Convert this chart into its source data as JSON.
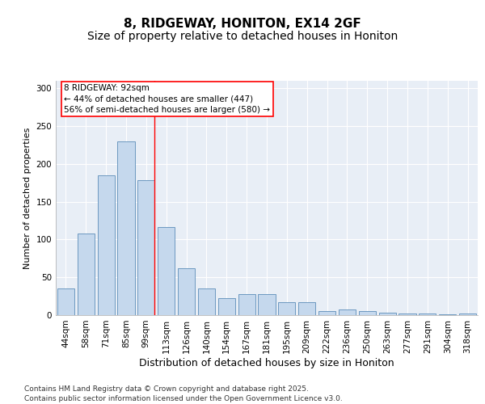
{
  "title_line1": "8, RIDGEWAY, HONITON, EX14 2GF",
  "title_line2": "Size of property relative to detached houses in Honiton",
  "xlabel": "Distribution of detached houses by size in Honiton",
  "ylabel": "Number of detached properties",
  "categories": [
    "44sqm",
    "58sqm",
    "71sqm",
    "85sqm",
    "99sqm",
    "113sqm",
    "126sqm",
    "140sqm",
    "154sqm",
    "167sqm",
    "181sqm",
    "195sqm",
    "209sqm",
    "222sqm",
    "236sqm",
    "250sqm",
    "263sqm",
    "277sqm",
    "291sqm",
    "304sqm",
    "318sqm"
  ],
  "values": [
    35,
    108,
    185,
    230,
    178,
    116,
    62,
    35,
    22,
    28,
    28,
    17,
    17,
    5,
    7,
    5,
    3,
    2,
    2,
    1,
    2
  ],
  "bar_color": "#c5d8ed",
  "bar_edge_color": "#5b8db8",
  "background_color": "#e8eef6",
  "grid_color": "#ffffff",
  "vline_color": "red",
  "vline_index": 4,
  "annotation_text": "8 RIDGEWAY: 92sqm\n← 44% of detached houses are smaller (447)\n56% of semi-detached houses are larger (580) →",
  "annotation_box_color": "#ffffff",
  "annotation_box_edge": "red",
  "ylim": [
    0,
    310
  ],
  "yticks": [
    0,
    50,
    100,
    150,
    200,
    250,
    300
  ],
  "footer": "Contains HM Land Registry data © Crown copyright and database right 2025.\nContains public sector information licensed under the Open Government Licence v3.0.",
  "title_fontsize": 11,
  "subtitle_fontsize": 10,
  "xlabel_fontsize": 9,
  "ylabel_fontsize": 8,
  "tick_fontsize": 7.5,
  "annotation_fontsize": 7.5,
  "footer_fontsize": 6.5
}
